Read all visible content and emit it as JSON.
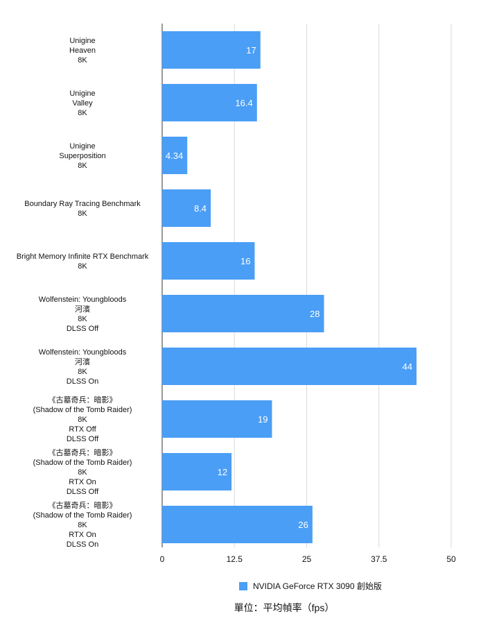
{
  "chart_data": {
    "type": "bar",
    "orientation": "horizontal",
    "categories": [
      [
        "Unigine",
        "Heaven",
        "8K"
      ],
      [
        "Unigine",
        "Valley",
        "8K"
      ],
      [
        "Unigine",
        "Superposition",
        "8K"
      ],
      [
        "Boundary Ray Tracing Benchmark",
        "8K"
      ],
      [
        "Bright Memory Infinite RTX Benchmark",
        "8K"
      ],
      [
        "Wolfenstein: Youngbloods",
        "河濱",
        "8K",
        "DLSS Off"
      ],
      [
        "Wolfenstein: Youngbloods",
        "河濱",
        "8K",
        "DLSS On"
      ],
      [
        "《古墓奇兵：暗影》",
        "(Shadow of the Tomb Raider)",
        "8K",
        "RTX Off",
        "DLSS Off"
      ],
      [
        "《古墓奇兵：暗影》",
        "(Shadow of the Tomb Raider)",
        "8K",
        "RTX On",
        "DLSS Off"
      ],
      [
        "《古墓奇兵：暗影》",
        "(Shadow of the Tomb Raider)",
        "8K",
        "RTX On",
        "DLSS On"
      ]
    ],
    "series": [
      {
        "name": "NVIDIA GeForce RTX 3090 創始版",
        "values": [
          17,
          16.4,
          4.34,
          8.4,
          16,
          28,
          44,
          19,
          12,
          26
        ],
        "labels": [
          "17",
          "16.4",
          "4.34",
          "8.4",
          "16",
          "28",
          "44",
          "19",
          "12",
          "26"
        ]
      }
    ],
    "xlim": [
      0,
      50
    ],
    "xticks": [
      "0",
      "12.5",
      "25",
      "37.5",
      "50"
    ],
    "grid": true,
    "legend_position": "bottom",
    "unit_label": "單位：平均幀率（fps）",
    "colors": {
      "bar": "#4a9ef5",
      "grid": "#d9d9d9",
      "axis": "#555555"
    }
  }
}
